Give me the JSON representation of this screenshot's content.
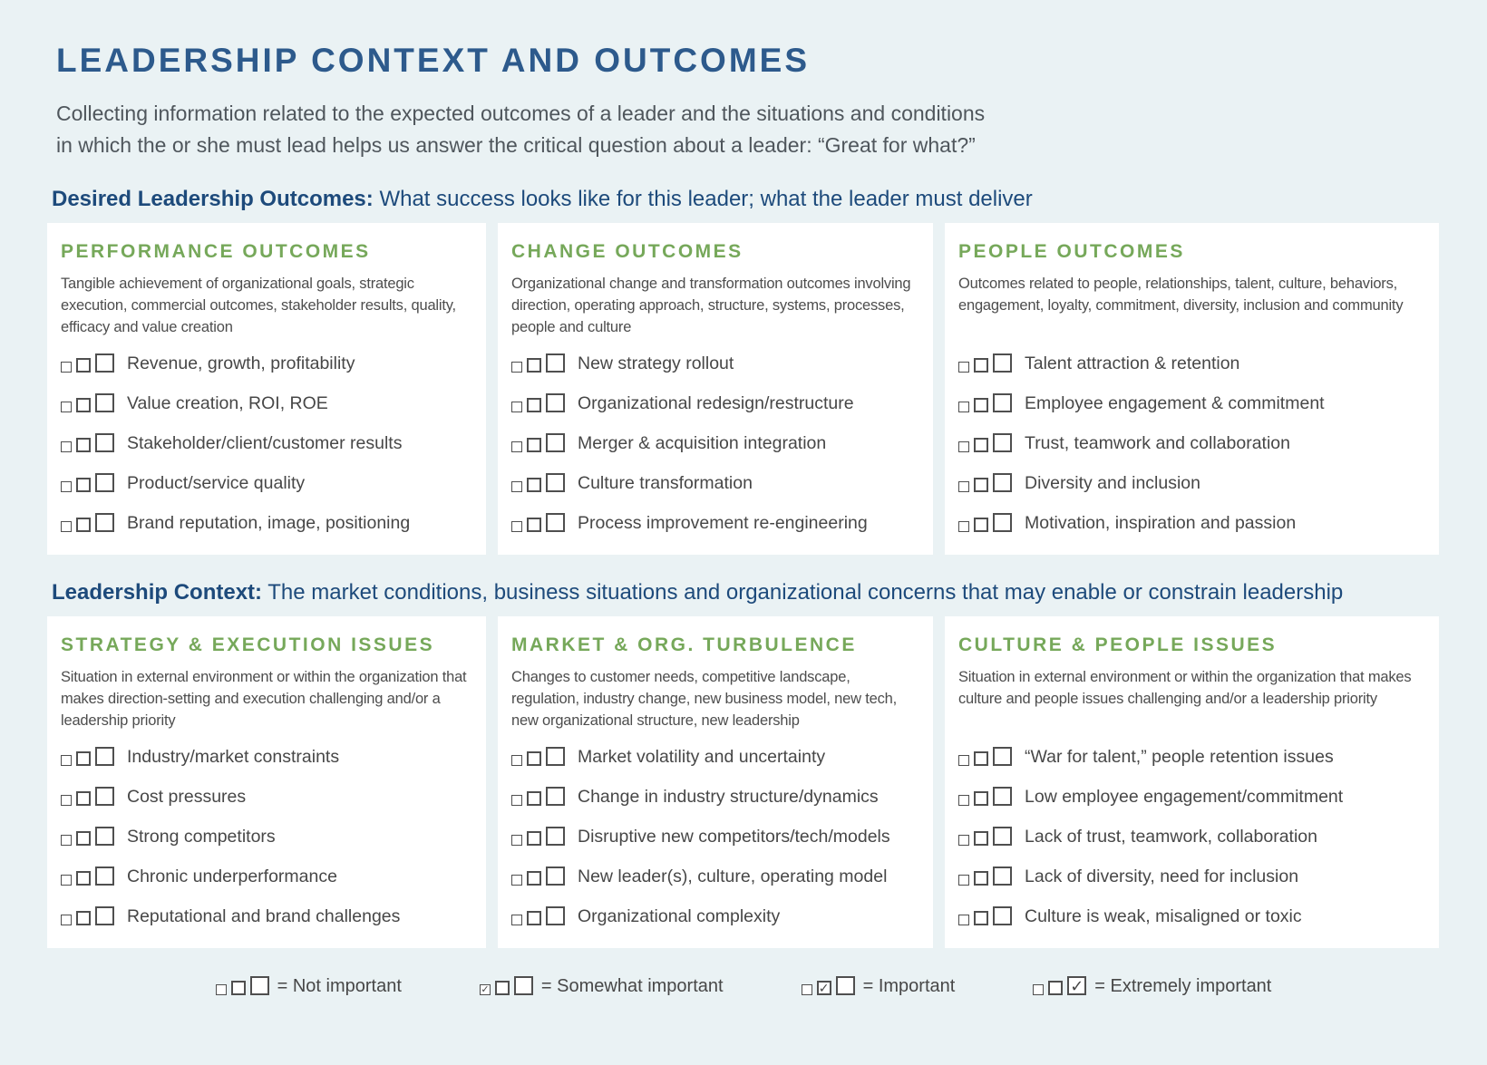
{
  "page": {
    "title": "LEADERSHIP CONTEXT AND OUTCOMES",
    "intro_line1": "Collecting information related to the expected outcomes of a leader and the situations and conditions",
    "intro_line2": "in which the or she must lead helps us answer the critical question about a leader: “Great for what?”"
  },
  "colors": {
    "background": "#EAF2F4",
    "card_background": "#FFFFFF",
    "title_navy": "#2D5A8C",
    "section_navy": "#1D4A7B",
    "header_green": "#76A85A",
    "body_gray": "#4A4A4A",
    "checkbox_border": "#4F4F4F"
  },
  "sections": [
    {
      "label_bold": "Desired Leadership Outcomes:",
      "label_rest": " What success looks like for this leader; what the leader must deliver",
      "cards": [
        {
          "title": "PERFORMANCE OUTCOMES",
          "description": "Tangible achievement of organizational goals, strategic execution, commercial outcomes, stakeholder results, quality, efficacy and value creation",
          "items": [
            "Revenue, growth, profitability",
            "Value creation, ROI, ROE",
            "Stakeholder/client/customer results",
            "Product/service quality",
            "Brand reputation, image, positioning"
          ]
        },
        {
          "title": "CHANGE OUTCOMES",
          "description": "Organizational change and transformation outcomes involving direction, operating approach, structure, systems, processes, people and culture",
          "items": [
            "New strategy rollout",
            "Organizational redesign/restructure",
            "Merger & acquisition integration",
            "Culture transformation",
            "Process improvement re-engineering"
          ]
        },
        {
          "title": "PEOPLE OUTCOMES",
          "description": "Outcomes related to people, relationships, talent, culture, behaviors, engagement, loyalty, commitment, diversity, inclusion and community",
          "items": [
            "Talent attraction & retention",
            "Employee engagement & commitment",
            "Trust, teamwork and collaboration",
            "Diversity and inclusion",
            "Motivation, inspiration and passion"
          ]
        }
      ]
    },
    {
      "label_bold": "Leadership Context:",
      "label_rest": " The market conditions, business situations and organizational concerns that may enable or constrain leadership",
      "cards": [
        {
          "title": "STRATEGY & EXECUTION ISSUES",
          "description": "Situation in external environment or within the organization that makes direction-setting and execution challenging and/or a leadership priority",
          "items": [
            "Industry/market constraints",
            "Cost pressures",
            "Strong competitors",
            "Chronic underperformance",
            "Reputational and brand challenges"
          ]
        },
        {
          "title": "MARKET & ORG. TURBULENCE",
          "description": "Changes to customer needs, competitive landscape, regulation, industry change, new business model, new tech, new organizational structure, new leadership",
          "items": [
            "Market volatility and uncertainty",
            "Change in industry structure/dynamics",
            "Disruptive new competitors/tech/models",
            "New leader(s), culture, operating model",
            "Organizational complexity"
          ]
        },
        {
          "title": "CULTURE & PEOPLE ISSUES",
          "description": "Situation in external environment or within the organization that makes culture and people issues challenging and/or a leadership priority",
          "items": [
            "“War for talent,” people retention issues",
            "Low employee engagement/commitment",
            "Lack of trust, teamwork, collaboration",
            "Lack of diversity, need for inclusion",
            "Culture is weak, misaligned or toxic"
          ]
        }
      ]
    }
  ],
  "legend": {
    "check_glyph": "✓",
    "items": [
      {
        "checked": null,
        "label": "= Not important"
      },
      {
        "checked": 0,
        "label": "= Somewhat important"
      },
      {
        "checked": 1,
        "label": "= Important"
      },
      {
        "checked": 2,
        "label": "= Extremely important"
      }
    ]
  }
}
